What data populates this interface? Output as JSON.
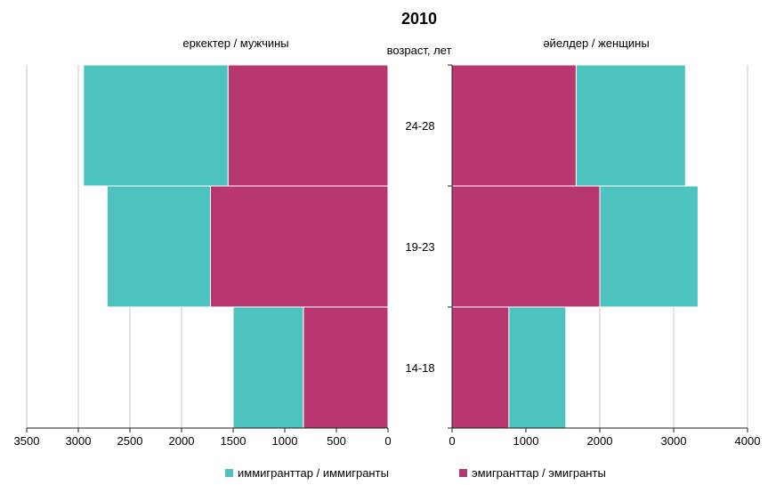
{
  "chart_data": {
    "type": "bar",
    "title": "2010",
    "center_label": "возраст, лет",
    "colors": {
      "immigrants": "#4dc3bf",
      "emigrants": "#b83770"
    },
    "grid": true,
    "categories": [
      "24-28",
      "19-23",
      "14-18"
    ],
    "left_panel": {
      "label": "еркектер / мужчины",
      "xlim": [
        0,
        3500
      ],
      "ticks": [
        3500,
        3000,
        2500,
        2000,
        1500,
        1000,
        500,
        0
      ],
      "series": [
        {
          "name": "эмигранттар / эмигранты",
          "key": "emigrants",
          "values": [
            1550,
            1720,
            820
          ]
        },
        {
          "name": "иммигранттар / иммигранты",
          "key": "immigrants",
          "values": [
            1400,
            1000,
            680
          ]
        }
      ]
    },
    "right_panel": {
      "label": "әйелдер / женщины",
      "xlim": [
        0,
        4000
      ],
      "ticks": [
        0,
        1000,
        2000,
        3000,
        4000
      ],
      "series": [
        {
          "name": "эмигранттар / эмигранты",
          "key": "emigrants",
          "values": [
            1680,
            2000,
            770
          ]
        },
        {
          "name": "иммигранттар / иммигранты",
          "key": "immigrants",
          "values": [
            1480,
            1330,
            770
          ]
        }
      ]
    },
    "legend": {
      "position": "bottom",
      "items": [
        {
          "key": "immigrants",
          "label": "иммигранттар / иммигранты"
        },
        {
          "key": "emigrants",
          "label": "эмигранттар / эмигранты"
        }
      ]
    }
  }
}
